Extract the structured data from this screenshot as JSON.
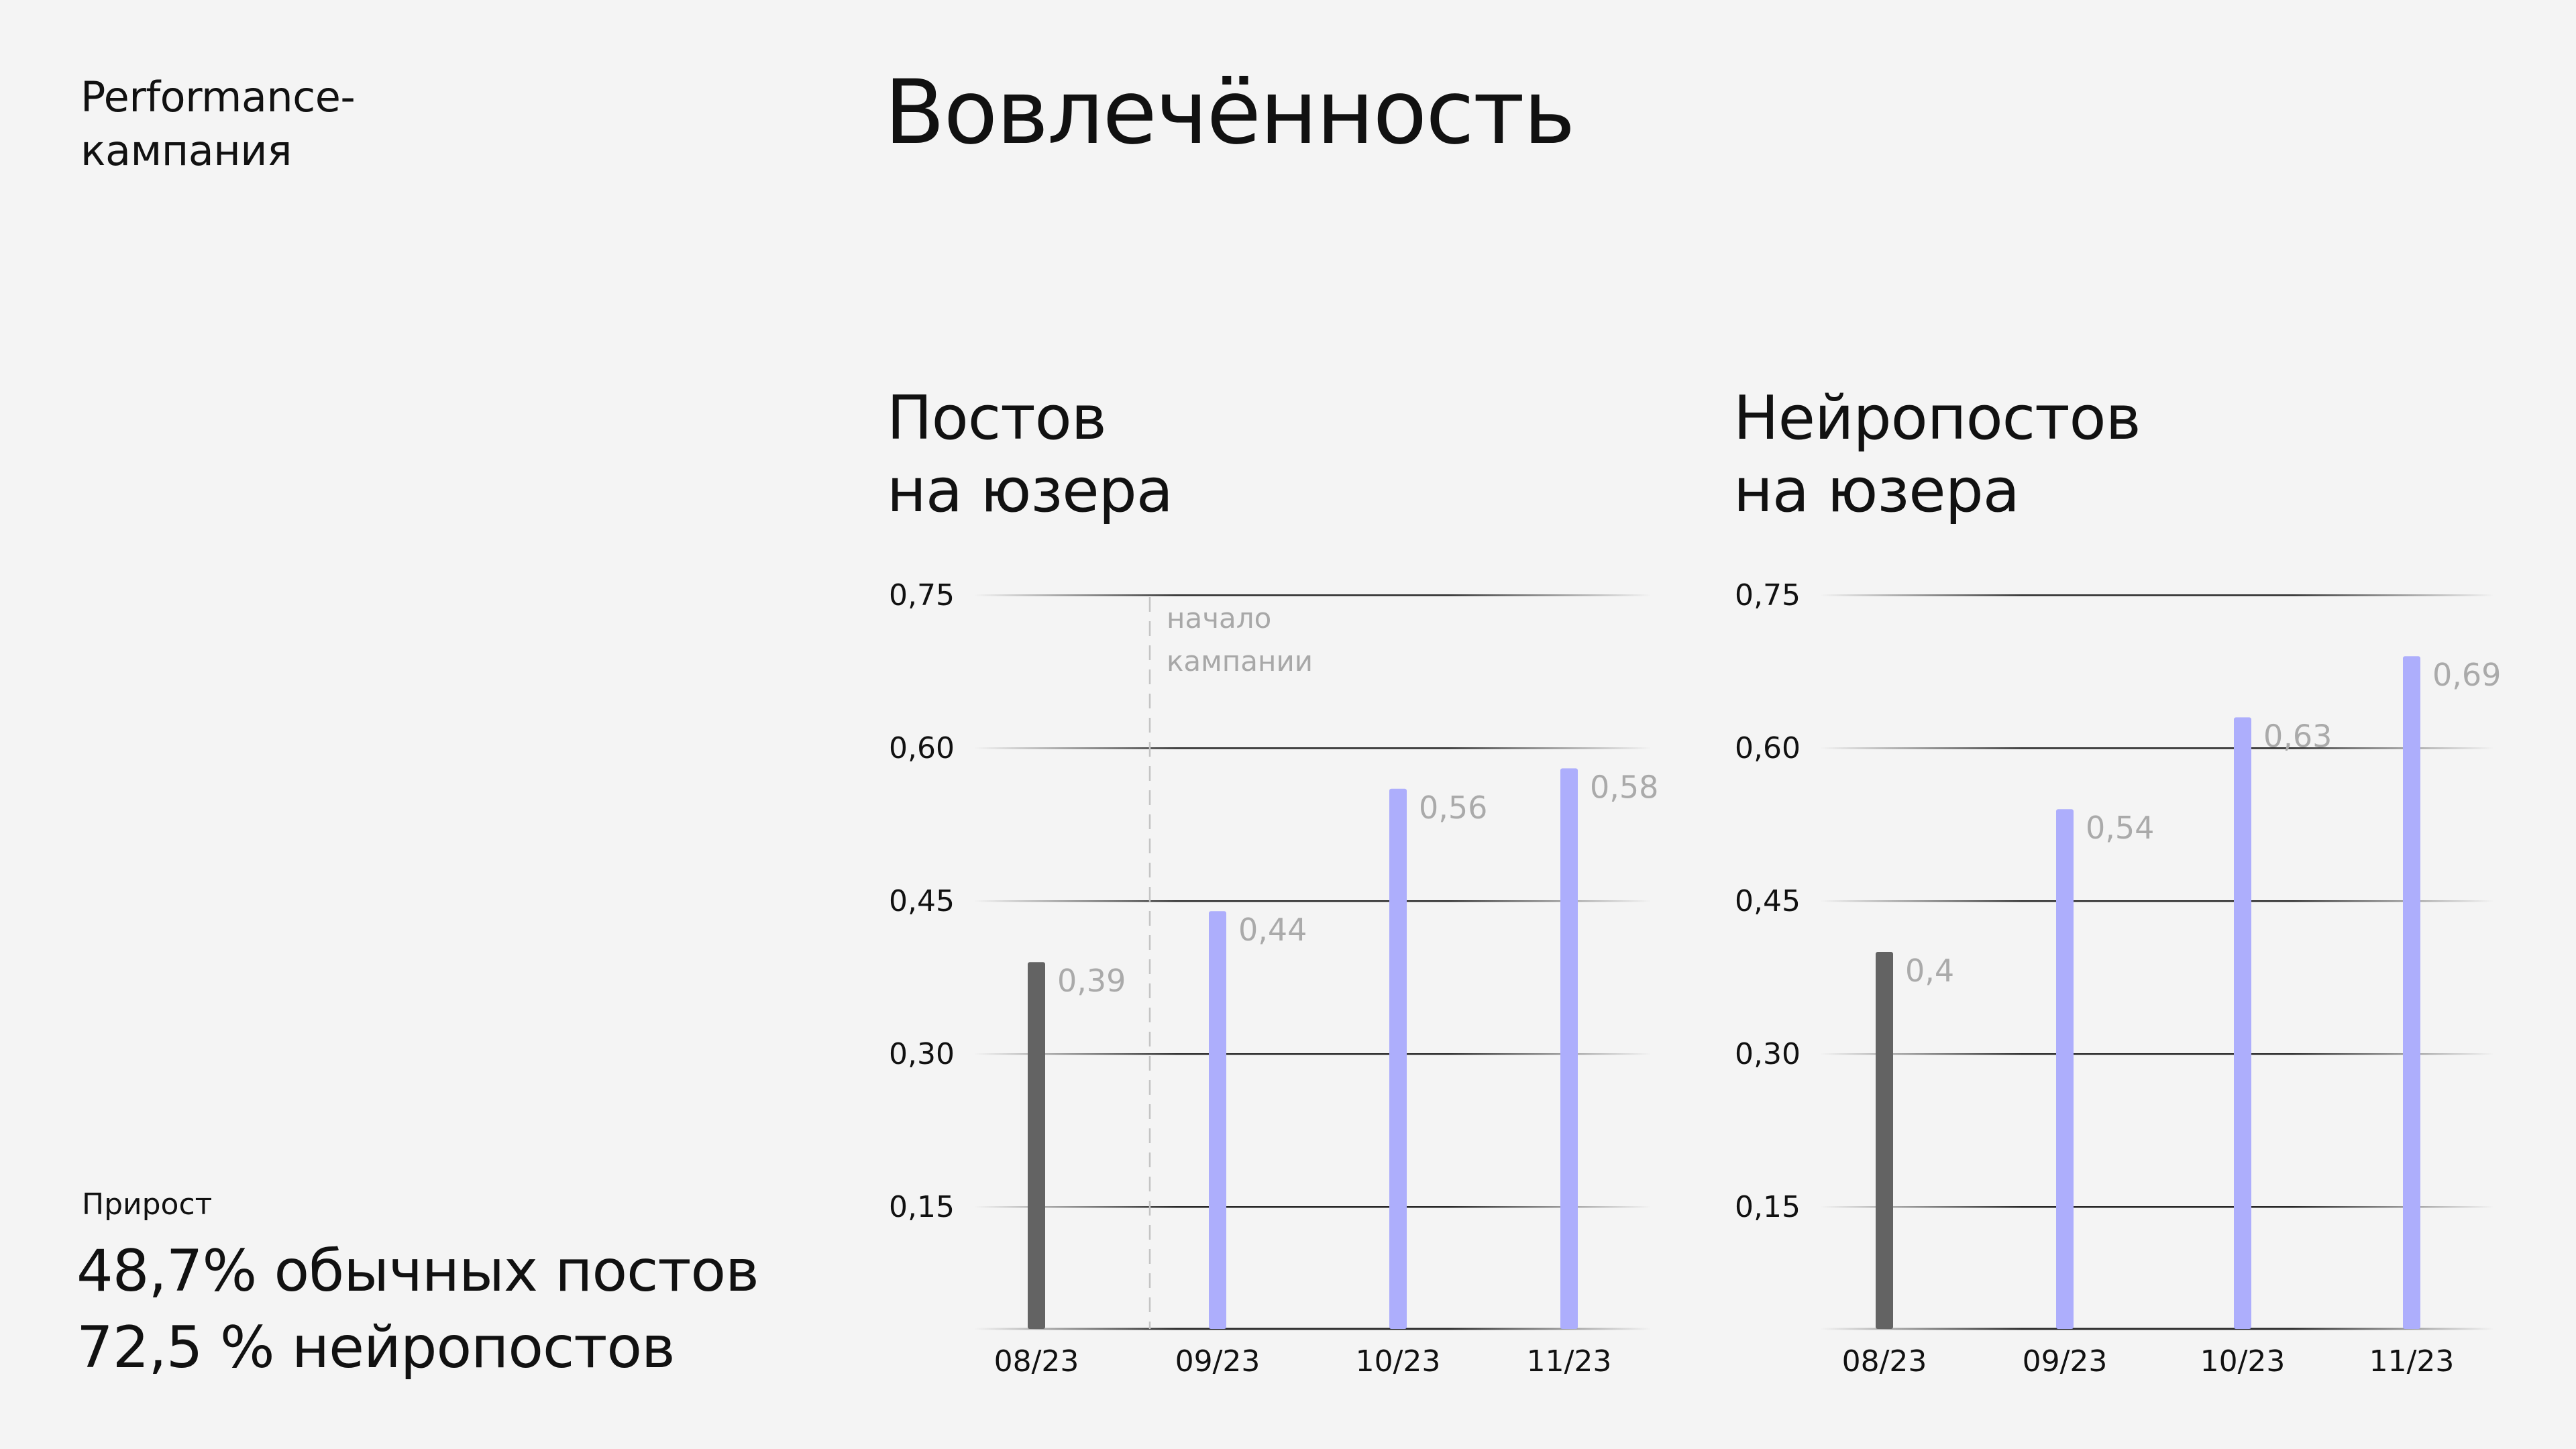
{
  "side_title": [
    "Performance-",
    "кампания"
  ],
  "main_title": "Вовлечённость",
  "growth": {
    "label": "Прирост",
    "lines": [
      "48,7% обычных постов",
      "72,5 % нейропостов"
    ]
  },
  "colors": {
    "background": "#f4f4f4",
    "before_campaign": "#636363",
    "after_campaign": "#adaefc",
    "value_label": "#aaaaaa"
  },
  "chart_data": [
    {
      "type": "bar",
      "title": [
        "Постов",
        "на юзера"
      ],
      "categories": [
        "08/23",
        "09/23",
        "10/23",
        "11/23"
      ],
      "values": [
        0.39,
        0.44,
        0.56,
        0.58
      ],
      "value_labels": [
        "0,39",
        "0,44",
        "0,56",
        "0,58"
      ],
      "bar_colors": [
        "#636363",
        "#adaefc",
        "#adaefc",
        "#adaefc"
      ],
      "yticks": [
        0.15,
        0.3,
        0.45,
        0.6,
        0.75
      ],
      "ytick_labels": [
        "0,15",
        "0,30",
        "0,45",
        "0,60",
        "0,75"
      ],
      "ylim": [
        0,
        0.75
      ],
      "grid": true,
      "annotation": {
        "text": [
          "начало",
          "кампании"
        ],
        "between": [
          "08/23",
          "09/23"
        ],
        "style": "dashed-vertical-line"
      }
    },
    {
      "type": "bar",
      "title": [
        "Нейропостов",
        "на юзера"
      ],
      "categories": [
        "08/23",
        "09/23",
        "10/23",
        "11/23"
      ],
      "values": [
        0.4,
        0.54,
        0.63,
        0.69
      ],
      "value_labels": [
        "0,4",
        "0,54",
        "0,63",
        "0,69"
      ],
      "bar_colors": [
        "#636363",
        "#adaefc",
        "#adaefc",
        "#adaefc"
      ],
      "yticks": [
        0.15,
        0.3,
        0.45,
        0.6,
        0.75
      ],
      "ytick_labels": [
        "0,15",
        "0,30",
        "0,45",
        "0,60",
        "0,75"
      ],
      "ylim": [
        0,
        0.75
      ],
      "grid": true
    }
  ]
}
